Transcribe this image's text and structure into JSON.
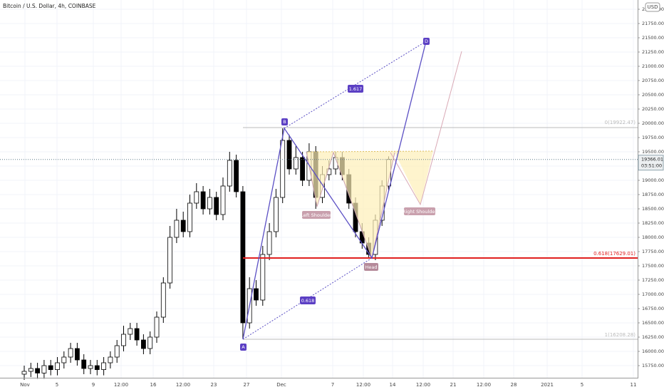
{
  "chart_data": {
    "type": "candlestick",
    "title": "Bitcoin / U.S. Dollar, 4h, COINBASE",
    "currency": "USD",
    "last_price": 19366.01,
    "countdown": "03:51:00",
    "ylim": [
      15562.5,
      22162.5
    ],
    "yticks": [
      {
        "value": 15750,
        "label": "15750.00"
      },
      {
        "value": 16000,
        "label": "16000.00"
      },
      {
        "value": 16250,
        "label": "16250.00"
      },
      {
        "value": 16500,
        "label": "16500.00"
      },
      {
        "value": 16750,
        "label": "16750.00"
      },
      {
        "value": 17000,
        "label": "17000.00"
      },
      {
        "value": 17250,
        "label": "17250.00"
      },
      {
        "value": 17500,
        "label": "17500.00"
      },
      {
        "value": 17750,
        "label": "17750.00"
      },
      {
        "value": 18000,
        "label": "18000.00"
      },
      {
        "value": 18250,
        "label": "18250.00"
      },
      {
        "value": 18500,
        "label": "18500.00"
      },
      {
        "value": 18750,
        "label": "18750.00"
      },
      {
        "value": 19000,
        "label": "19000.00"
      },
      {
        "value": 19250,
        "label": "19250.00"
      },
      {
        "value": 19500,
        "label": "19500.00"
      },
      {
        "value": 19750,
        "label": "19750.00"
      },
      {
        "value": 20000,
        "label": "20000.00"
      },
      {
        "value": 20250,
        "label": "20250.00"
      },
      {
        "value": 20500,
        "label": "20500.00"
      },
      {
        "value": 20750,
        "label": "20750.00"
      },
      {
        "value": 21000,
        "label": "21000.00"
      },
      {
        "value": 21250,
        "label": "21250.00"
      },
      {
        "value": 21500,
        "label": "21500.00"
      },
      {
        "value": 21750,
        "label": "21750.00"
      },
      {
        "value": 22000,
        "label": "22000.00"
      }
    ],
    "xtick_labels": [
      "Nov",
      "5",
      "9",
      "12:00",
      "16",
      "12:00",
      "23",
      "27",
      "Dec",
      "7",
      "12:00",
      "14",
      "12:00",
      "21",
      "12:00",
      "28",
      "2021",
      "5",
      "11"
    ],
    "grid": true,
    "up_color": "#ffffff",
    "down_color": "#000000",
    "open": [
      15600,
      15650,
      15700,
      15620,
      15750,
      15680,
      15800,
      15900,
      16050,
      15850,
      15700,
      15750,
      15680,
      15800,
      15900,
      16100,
      16300,
      16400,
      16200,
      16050,
      16250,
      16600,
      17200,
      18000,
      18300,
      18100,
      18600,
      18800,
      18500,
      18700,
      18400,
      18900,
      19350,
      18800,
      16500,
      17100,
      16900,
      17700,
      18100,
      18700,
      19700,
      19200,
      19400,
      19000,
      19500,
      18700,
      19100,
      19200,
      19400,
      19100,
      18600,
      18100,
      17900,
      17700,
      18300,
      18900
    ],
    "high": [
      15750,
      15800,
      15800,
      15850,
      15850,
      15900,
      16000,
      16150,
      16150,
      15950,
      15850,
      15850,
      15900,
      16000,
      16200,
      16450,
      16500,
      16500,
      16300,
      16350,
      16700,
      17300,
      18200,
      18500,
      18450,
      18750,
      18950,
      18900,
      18850,
      18800,
      19050,
      19500,
      19450,
      18900,
      17300,
      17250,
      17850,
      18250,
      18850,
      19912,
      19800,
      19600,
      19500,
      19650,
      19600,
      19250,
      19350,
      19500,
      19500,
      19200,
      18700,
      18250,
      18000,
      18400,
      19000,
      19420
    ],
    "low": [
      15500,
      15550,
      15520,
      15520,
      15580,
      15580,
      15700,
      15800,
      15750,
      15600,
      15600,
      15580,
      15580,
      15700,
      15800,
      16000,
      16200,
      16100,
      15950,
      15950,
      16150,
      16500,
      17100,
      17900,
      18000,
      18000,
      18500,
      18400,
      18400,
      18300,
      18300,
      18800,
      18700,
      16212,
      16400,
      16800,
      16800,
      17600,
      18000,
      18600,
      19100,
      19100,
      18900,
      18900,
      18500,
      18600,
      19000,
      19100,
      19000,
      18500,
      18000,
      17800,
      17629,
      17600,
      18200,
      18800
    ],
    "close": [
      15650,
      15700,
      15620,
      15750,
      15680,
      15800,
      15900,
      16050,
      15850,
      15700,
      15750,
      15680,
      15800,
      15900,
      16100,
      16300,
      16400,
      16200,
      16050,
      16250,
      16600,
      17200,
      18000,
      18300,
      18100,
      18600,
      18800,
      18500,
      18700,
      18400,
      18900,
      19350,
      18800,
      16500,
      17100,
      16900,
      17700,
      18100,
      18700,
      19700,
      19200,
      19400,
      19000,
      19500,
      18700,
      19100,
      19200,
      19400,
      19100,
      18600,
      18100,
      17900,
      17700,
      18300,
      18900,
      19366.01
    ],
    "annotations": {
      "a": "A",
      "b": "B",
      "d": "D",
      "head": "Head",
      "left_shoulder": "Left Shoulder",
      "right_shoulder": "Right Shoulder",
      "extension": "1.617",
      "retracement": "0.618",
      "fib_618": "0.618(17629.01)",
      "fib_0": "0(19922.47)",
      "fib_1": "1(16208.28)"
    }
  }
}
